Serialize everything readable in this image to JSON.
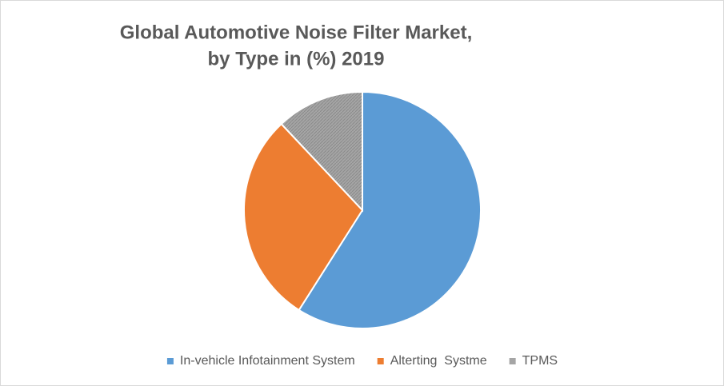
{
  "chart_data": {
    "type": "pie",
    "title": [
      "Global Automotive Noise Filter Market,",
      "by Type in (%) 2019"
    ],
    "categories": [
      "In-vehicle Infotainment System",
      "Alterting  Systme",
      "TPMS"
    ],
    "values": [
      59,
      29,
      12
    ],
    "colors": [
      "#5b9bd5",
      "#ed7d31",
      "#a5a5a5"
    ],
    "hatched": [
      false,
      false,
      true
    ],
    "legend": "bottom"
  }
}
